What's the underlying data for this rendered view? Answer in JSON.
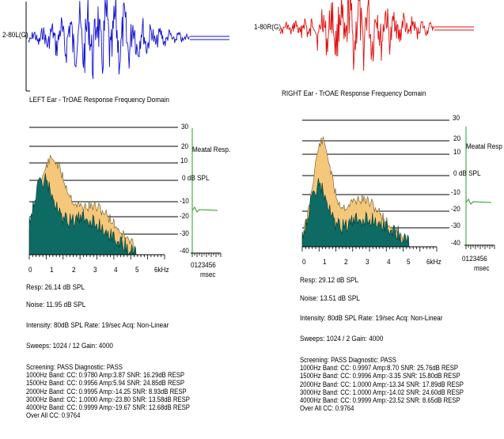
{
  "left": {
    "channel_label": "2-80L(G)",
    "response_title": "LEFT Ear - TrOAE Response Frequency Domain",
    "meatal_label": "Meatal Resp.",
    "db_label": "0 dB SPL",
    "scale_labels": [
      "30",
      "20",
      "10",
      "0",
      "-10",
      "-20",
      "-30",
      "-40"
    ],
    "freq_ticks": [
      "0",
      "1",
      "2",
      "3",
      "4",
      "5",
      "6kHz"
    ],
    "msec_ticks": "0123456",
    "msec_label": "msec",
    "resp": "Resp: 26.14 dB SPL",
    "noise": "Noise: 11.95 dB SPL",
    "intensity": "Intensity: 80dB SPL  Rate: 19/sec  Acq: Non-Linear",
    "sweeps": "Sweeps: 1024 / 12  Gain: 4000",
    "screening": "Screening: PASS  Diagnostic: PASS",
    "bands": [
      "1000Hz Band: CC: 0.9780 Amp:3.87 SNR: 16.29dB  RESP",
      "1500Hz Band: CC: 0.9956 Amp:5.94 SNR: 24.85dB  RESP",
      "2000Hz Band: CC: 0.9995 Amp:-14.25 SNR: 8.93dB  RESP",
      "3000Hz Band: CC: 1.0000 Amp:-23.80 SNR: 13.58dB  RESP",
      "4000Hz Band: CC: 0.9999 Amp:-19.67 SNR: 12.68dB  RESP"
    ],
    "overall": "Over All CC: 0.9764",
    "wave_color": "#1010d0"
  },
  "right": {
    "channel_label": "1-80R(G)",
    "response_title": "RIGHT Ear - TrOAE Response Frequency Domain",
    "meatal_label": "Meatal Resp",
    "db_label": "0 dB SPL",
    "scale_labels": [
      "30",
      "20",
      "10",
      "0",
      "-10",
      "-20",
      "-30",
      "-40"
    ],
    "freq_ticks": [
      "0",
      "1",
      "2",
      "3",
      "4",
      "5",
      "6kHz"
    ],
    "msec_ticks": "0123456",
    "msec_label": "msec",
    "resp": "Resp: 29.12 dB SPL",
    "noise": "Noise: 13.51 dB SPL",
    "intensity": "Intensity: 80dB SPL  Rate: 19/sec  Acq: Non-Linear",
    "sweeps": "Sweeps: 1024 / 2  Gain: 4000",
    "screening": "Screening: PASS  Diagnostic: PASS",
    "bands": [
      "1000Hz Band: CC: 0.9997 Amp:8.70 SNR: 25.76dB  RESP",
      "1500Hz Band: CC: 0.9996 Amp:-3.35 SNR: 15.80dB  RESP",
      "2000Hz Band: CC: 1.0000 Amp:-13.34 SNR: 17.89dB  RESP",
      "3000Hz Band: CC: 1.0000 Amp:-14.02 SNR: 24.60dB  RESP",
      "4000Hz Band: CC: 0.9999 Amp:-23.52 SNR: 8.65dB  RESP"
    ],
    "overall": "Over All CC: 0.9764",
    "wave_color": "#e01010"
  },
  "colors": {
    "response": "#f5c77a",
    "noise": "#0d6b63",
    "meatal": "#2a9a2a",
    "waveform_baseline": "#1a1ad0"
  }
}
